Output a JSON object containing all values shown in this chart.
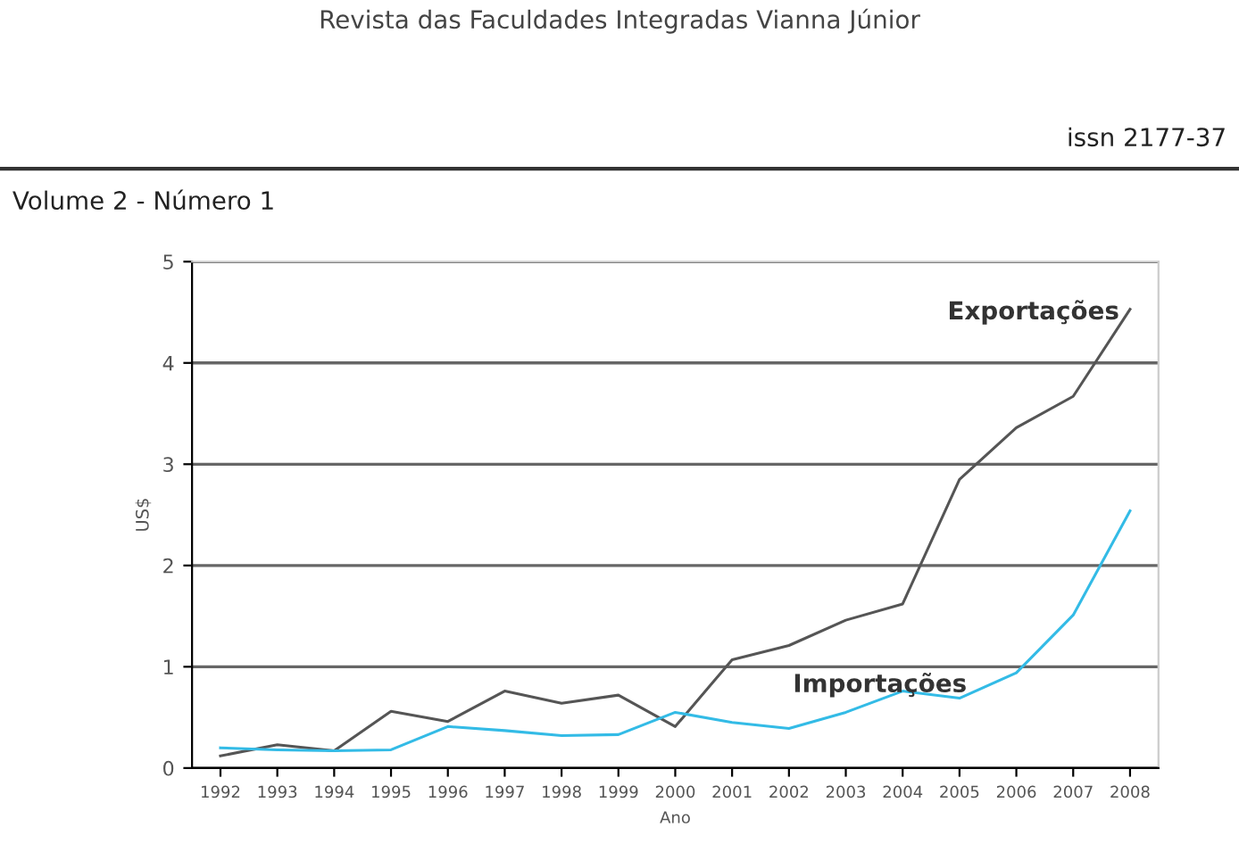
{
  "chart_data": {
    "type": "line",
    "xlabel": "Ano",
    "ylabel": "US$",
    "categories": [
      "1992",
      "1993",
      "1994",
      "1995",
      "1996",
      "1997",
      "1998",
      "1999",
      "2000",
      "2001",
      "2002",
      "2003",
      "2004",
      "2005",
      "2006",
      "2007",
      "2008"
    ],
    "series": [
      {
        "name": "Exportações",
        "color": "#555555",
        "values": [
          0.12,
          0.23,
          0.17,
          0.56,
          0.46,
          0.76,
          0.64,
          0.72,
          0.41,
          1.07,
          1.21,
          1.46,
          1.62,
          2.85,
          3.36,
          3.67,
          4.53
        ]
      },
      {
        "name": "Importações",
        "color": "#33bbe6",
        "values": [
          0.2,
          0.18,
          0.17,
          0.18,
          0.41,
          0.37,
          0.32,
          0.33,
          0.55,
          0.45,
          0.39,
          0.55,
          0.76,
          0.69,
          0.94,
          1.51,
          2.54
        ]
      }
    ],
    "ylim": [
      0,
      5
    ],
    "yticks": [
      0,
      1,
      2,
      3,
      4,
      5
    ],
    "grid": "y",
    "legend": false,
    "marker": "none",
    "line_style": "solid",
    "annotations": [
      "Revista das Faculdades Integradas Vianna Júnior",
      "issn 2177-37",
      "Volume 2 - Número 1"
    ]
  }
}
